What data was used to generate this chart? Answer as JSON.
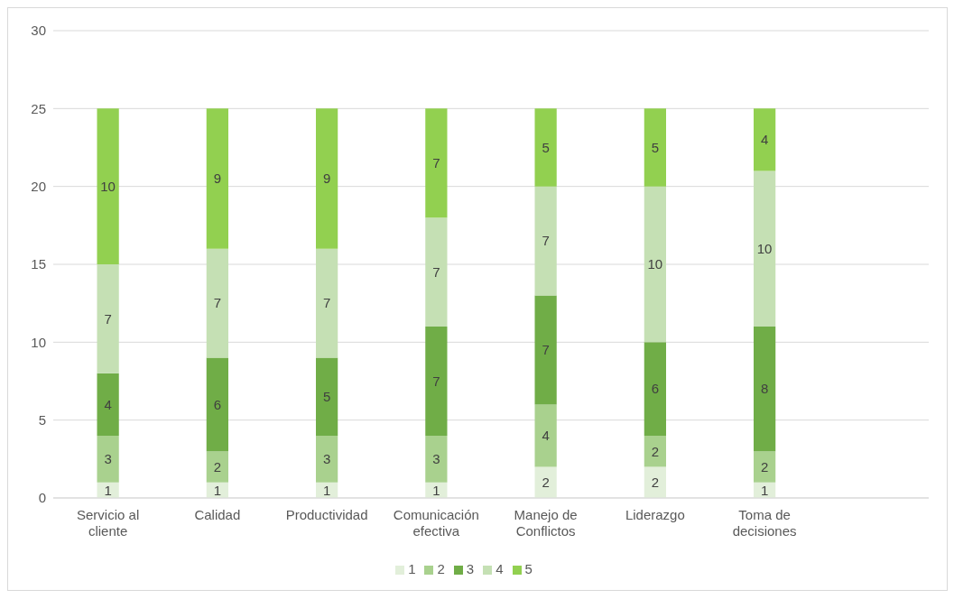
{
  "chart_data": {
    "type": "bar",
    "stacked": true,
    "categories": [
      "Servicio al cliente",
      "Calidad",
      "Productividad",
      "Comunicación efectiva",
      "Manejo de Conflictos",
      "Liderazgo",
      "Toma de decisiones",
      null
    ],
    "series": [
      {
        "name": "1",
        "color": "#e2efda",
        "values": [
          1,
          1,
          1,
          1,
          2,
          2,
          1,
          null
        ]
      },
      {
        "name": "2",
        "color": "#a9d18e",
        "values": [
          3,
          2,
          3,
          3,
          4,
          2,
          2,
          null
        ]
      },
      {
        "name": "3",
        "color": "#70ad47",
        "values": [
          4,
          6,
          5,
          7,
          7,
          6,
          8,
          null
        ]
      },
      {
        "name": "4",
        "color": "#c5e0b4",
        "values": [
          7,
          7,
          7,
          7,
          7,
          10,
          10,
          null
        ]
      },
      {
        "name": "5",
        "color": "#92d050",
        "values": [
          10,
          9,
          9,
          7,
          5,
          5,
          4,
          null
        ]
      }
    ],
    "ylim": [
      0,
      30
    ],
    "yticks": [
      0,
      5,
      10,
      15,
      20,
      25,
      30
    ],
    "grid": "y",
    "legend": "bottom",
    "data_labels": true
  }
}
